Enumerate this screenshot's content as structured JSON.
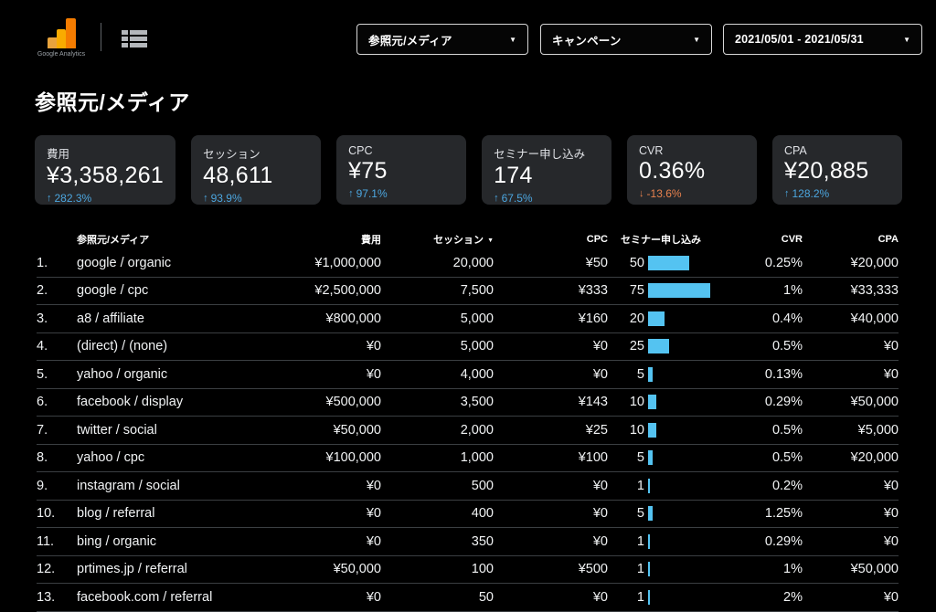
{
  "header": {
    "logo_caption": "Google Analytics",
    "filters": [
      {
        "label": "参照元/メディア"
      },
      {
        "label": "キャンペーン"
      },
      {
        "label": "2021/05/01 - 2021/05/31"
      }
    ]
  },
  "page_title": "参照元/メディア",
  "colors": {
    "positive": "#4ca6df",
    "negative": "#e8824e",
    "bar": "#54c3f1",
    "card_bg": "#26282b",
    "logo_orange": "#f57c00",
    "logo_amber": "#f9ab00"
  },
  "scorecards": [
    {
      "label": "費用",
      "value": "¥3,358,261",
      "delta": "282.3%",
      "direction": "up"
    },
    {
      "label": "セッション",
      "value": "48,611",
      "delta": "93.9%",
      "direction": "up"
    },
    {
      "label": "CPC",
      "value": "¥75",
      "delta": "97.1%",
      "direction": "up"
    },
    {
      "label": "セミナー申し込み",
      "value": "174",
      "delta": "67.5%",
      "direction": "up"
    },
    {
      "label": "CVR",
      "value": "0.36%",
      "delta": "-13.6%",
      "direction": "down"
    },
    {
      "label": "CPA",
      "value": "¥20,885",
      "delta": "128.2%",
      "direction": "up"
    }
  ],
  "table": {
    "columns": [
      "参照元/メディア",
      "費用",
      "セッション",
      "CPC",
      "セミナー申し込み",
      "CVR",
      "CPA"
    ],
    "sorted_by": "セッション",
    "bar_max": 75,
    "rows": [
      {
        "rank": "1.",
        "source": "google / organic",
        "cost": "¥1,000,000",
        "sessions": "20,000",
        "cpc": "¥50",
        "signups": 50,
        "cvr": "0.25%",
        "cpa": "¥20,000"
      },
      {
        "rank": "2.",
        "source": "google / cpc",
        "cost": "¥2,500,000",
        "sessions": "7,500",
        "cpc": "¥333",
        "signups": 75,
        "cvr": "1%",
        "cpa": "¥33,333"
      },
      {
        "rank": "3.",
        "source": "a8 / affiliate",
        "cost": "¥800,000",
        "sessions": "5,000",
        "cpc": "¥160",
        "signups": 20,
        "cvr": "0.4%",
        "cpa": "¥40,000"
      },
      {
        "rank": "4.",
        "source": "(direct) / (none)",
        "cost": "¥0",
        "sessions": "5,000",
        "cpc": "¥0",
        "signups": 25,
        "cvr": "0.5%",
        "cpa": "¥0"
      },
      {
        "rank": "5.",
        "source": "yahoo / organic",
        "cost": "¥0",
        "sessions": "4,000",
        "cpc": "¥0",
        "signups": 5,
        "cvr": "0.13%",
        "cpa": "¥0"
      },
      {
        "rank": "6.",
        "source": "facebook / display",
        "cost": "¥500,000",
        "sessions": "3,500",
        "cpc": "¥143",
        "signups": 10,
        "cvr": "0.29%",
        "cpa": "¥50,000"
      },
      {
        "rank": "7.",
        "source": "twitter / social",
        "cost": "¥50,000",
        "sessions": "2,000",
        "cpc": "¥25",
        "signups": 10,
        "cvr": "0.5%",
        "cpa": "¥5,000"
      },
      {
        "rank": "8.",
        "source": "yahoo / cpc",
        "cost": "¥100,000",
        "sessions": "1,000",
        "cpc": "¥100",
        "signups": 5,
        "cvr": "0.5%",
        "cpa": "¥20,000"
      },
      {
        "rank": "9.",
        "source": "instagram / social",
        "cost": "¥0",
        "sessions": "500",
        "cpc": "¥0",
        "signups": 1,
        "cvr": "0.2%",
        "cpa": "¥0"
      },
      {
        "rank": "10.",
        "source": "blog / referral",
        "cost": "¥0",
        "sessions": "400",
        "cpc": "¥0",
        "signups": 5,
        "cvr": "1.25%",
        "cpa": "¥0"
      },
      {
        "rank": "11.",
        "source": "bing / organic",
        "cost": "¥0",
        "sessions": "350",
        "cpc": "¥0",
        "signups": 1,
        "cvr": "0.29%",
        "cpa": "¥0"
      },
      {
        "rank": "12.",
        "source": "prtimes.jp / referral",
        "cost": "¥50,000",
        "sessions": "100",
        "cpc": "¥500",
        "signups": 1,
        "cvr": "1%",
        "cpa": "¥50,000"
      },
      {
        "rank": "13.",
        "source": "facebook.com / referral",
        "cost": "¥0",
        "sessions": "50",
        "cpc": "¥0",
        "signups": 1,
        "cvr": "2%",
        "cpa": "¥0"
      }
    ]
  }
}
